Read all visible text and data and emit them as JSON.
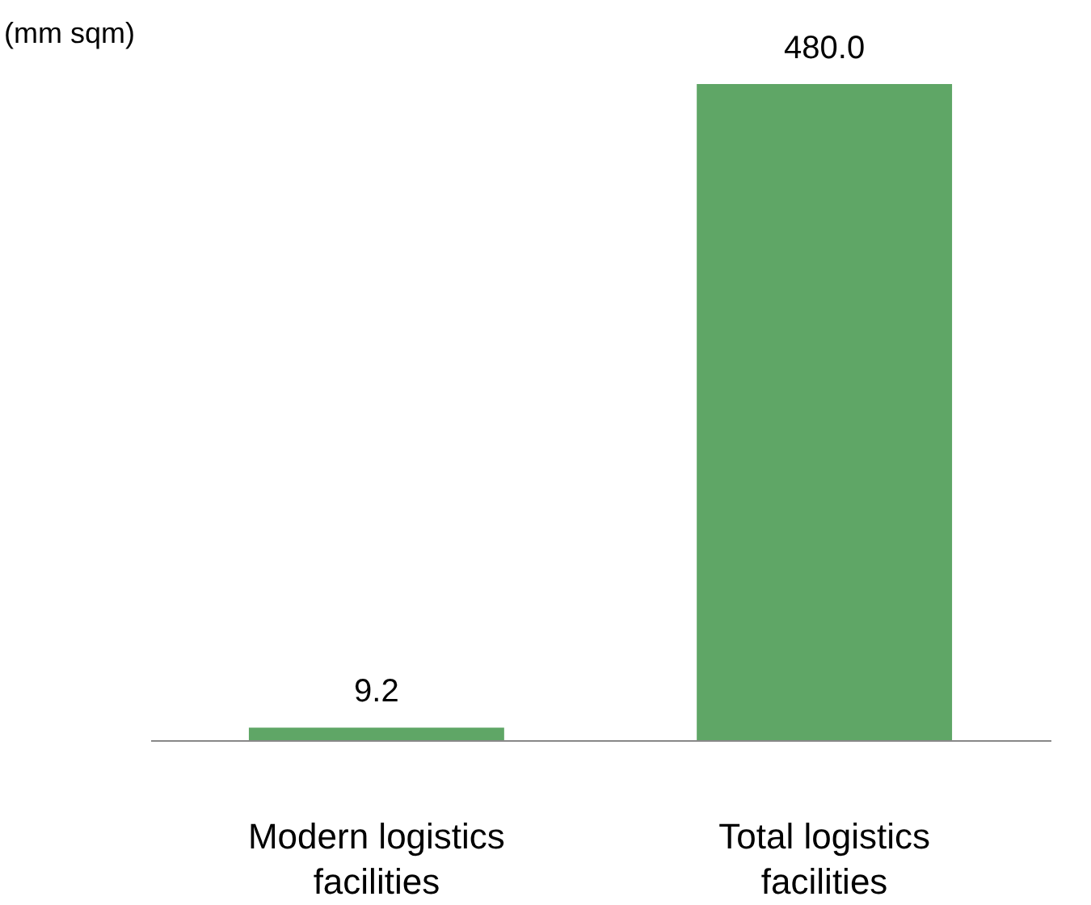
{
  "chart_data": {
    "type": "bar",
    "ylabel": "(mm sqm)",
    "categories": [
      "Modern logistics facilities",
      "Total logistics facilities"
    ],
    "values": [
      9.2,
      480.0
    ],
    "value_labels": [
      "9.2",
      "480.0"
    ],
    "color": "#5fa666",
    "tick_labels": "x",
    "grid": false
  }
}
